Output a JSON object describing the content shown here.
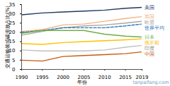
{
  "chart_data": {
    "type": "line",
    "x_label": "年份",
    "y_label": "交通运输领域碳排放占比(%)",
    "annotations": [
      "tanpaifang.com"
    ],
    "x": [
      1990,
      1995,
      2000,
      2005,
      2010,
      2015,
      2019
    ],
    "xlim": [
      1990,
      2019
    ],
    "xticks": [
      1990,
      1995,
      2000,
      2005,
      2010,
      2015,
      2019
    ],
    "ylim": [
      0,
      35
    ],
    "yticks": [
      0,
      5,
      10,
      15,
      20,
      25,
      30,
      35
    ],
    "grid": false,
    "series": [
      {
        "name": "美国",
        "color": "#1f3864",
        "line_style": "solid",
        "values": [
          29.5,
          30.5,
          31,
          31.5,
          32,
          33,
          33.5
        ]
      },
      {
        "name": "英国",
        "color": "#f4b183",
        "line_style": "solid",
        "values": [
          20.5,
          21.5,
          24,
          24.5,
          26,
          27.5,
          28.5
        ]
      },
      {
        "name": "欧盟",
        "color": "#a5a5a5",
        "line_style": "solid",
        "values": [
          18.5,
          20.5,
          22.5,
          23.5,
          24,
          25,
          26
        ]
      },
      {
        "name": "世界平均",
        "color": "#2e75b6",
        "line_style": "dashed",
        "values": [
          20,
          21,
          22.5,
          22.5,
          22.5,
          23.5,
          24.5
        ]
      },
      {
        "name": "日本",
        "color": "#70ad47",
        "line_style": "solid",
        "values": [
          19.5,
          21,
          21,
          21,
          19,
          18,
          17.5
        ]
      },
      {
        "name": "俄罗斯",
        "color": "#ffc000",
        "line_style": "solid",
        "values": [
          14,
          13.5,
          14.5,
          15,
          15.5,
          16,
          16.5
        ]
      },
      {
        "name": "印度",
        "color": "#bfbfbf",
        "line_style": "solid",
        "values": [
          10.5,
          10,
          10,
          10,
          10.5,
          12,
          13
        ]
      },
      {
        "name": "中国",
        "color": "#c55a11",
        "line_style": "solid",
        "values": [
          5,
          4.5,
          7,
          7.5,
          8,
          8.5,
          9.5
        ]
      }
    ]
  }
}
